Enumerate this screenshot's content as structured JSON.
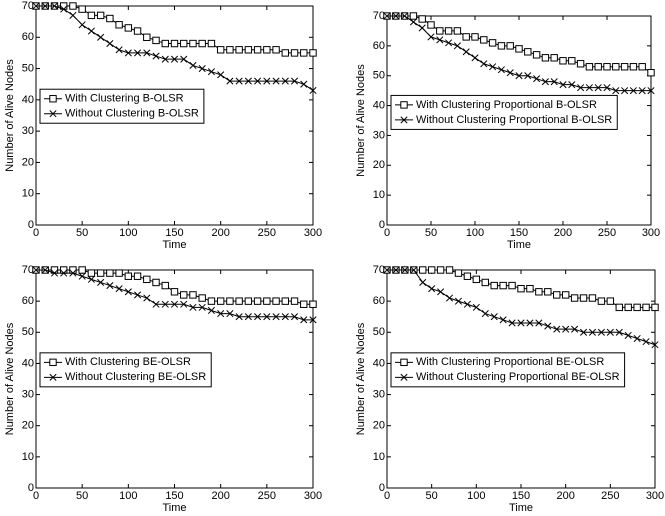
{
  "chart_data": [
    {
      "type": "line",
      "xlabel": "Time",
      "ylabel": "Number of Alive Nodes",
      "x": [
        0,
        10,
        20,
        30,
        40,
        50,
        60,
        70,
        80,
        90,
        100,
        110,
        120,
        130,
        140,
        150,
        160,
        170,
        180,
        190,
        200,
        210,
        220,
        230,
        240,
        250,
        260,
        270,
        280,
        290,
        300
      ],
      "series": [
        {
          "name": "With Clustering B-OLSR",
          "color": "#000000",
          "marker": "square",
          "values": [
            70,
            70,
            70,
            70,
            70,
            69,
            67,
            67,
            66,
            64,
            63,
            62,
            60,
            59,
            58,
            58,
            58,
            58,
            58,
            58,
            56,
            56,
            56,
            56,
            56,
            56,
            56,
            55,
            55,
            55,
            55
          ]
        },
        {
          "name": "Without Clustering B-OLSR",
          "color": "#000000",
          "marker": "x",
          "values": [
            70,
            70,
            70,
            69,
            67,
            64,
            62,
            60,
            58,
            56,
            55,
            55,
            55,
            54,
            53,
            53,
            53,
            51,
            50,
            49,
            48,
            46,
            46,
            46,
            46,
            46,
            46,
            46,
            46,
            45,
            43
          ]
        }
      ],
      "xlim": [
        0,
        300
      ],
      "xticks": [
        0,
        50,
        100,
        150,
        200,
        250,
        300
      ],
      "ylim": [
        0,
        70
      ],
      "yticks": [
        0,
        10,
        20,
        30,
        40,
        50,
        60,
        70
      ],
      "legend": "center left"
    },
    {
      "type": "line",
      "xlabel": "Time",
      "ylabel": "Number of Alive Nodes",
      "x": [
        0,
        10,
        20,
        30,
        40,
        50,
        60,
        70,
        80,
        90,
        100,
        110,
        120,
        130,
        140,
        150,
        160,
        170,
        180,
        190,
        200,
        210,
        220,
        230,
        240,
        250,
        260,
        270,
        280,
        290,
        300
      ],
      "series": [
        {
          "name": "With Clustering Proportional B-OLSR",
          "color": "#000000",
          "marker": "square",
          "values": [
            70,
            70,
            70,
            70,
            69,
            67,
            65,
            65,
            65,
            63,
            63,
            62,
            61,
            60,
            60,
            59,
            58,
            57,
            56,
            56,
            55,
            55,
            54,
            53,
            53,
            53,
            53,
            53,
            53,
            53,
            51
          ]
        },
        {
          "name": "Without Clustering Proportional B-OLSR",
          "color": "#000000",
          "marker": "x",
          "values": [
            70,
            70,
            70,
            68,
            66,
            63,
            62,
            61,
            60,
            58,
            56,
            54,
            53,
            52,
            51,
            50,
            50,
            49,
            48,
            48,
            47,
            47,
            46,
            46,
            46,
            46,
            45,
            45,
            45,
            45,
            45
          ]
        }
      ],
      "xlim": [
        0,
        300
      ],
      "xticks": [
        0,
        50,
        100,
        150,
        200,
        250,
        300
      ],
      "ylim": [
        0,
        70
      ],
      "yticks": [
        0,
        10,
        20,
        30,
        40,
        50,
        60,
        70
      ],
      "legend": "center left"
    },
    {
      "type": "line",
      "xlabel": "Time",
      "ylabel": "Number of Alive Nodes",
      "x": [
        0,
        10,
        20,
        30,
        40,
        50,
        60,
        70,
        80,
        90,
        100,
        110,
        120,
        130,
        140,
        150,
        160,
        170,
        180,
        190,
        200,
        210,
        220,
        230,
        240,
        250,
        260,
        270,
        280,
        290,
        300
      ],
      "series": [
        {
          "name": "With Clustering BE-OLSR",
          "color": "#000000",
          "marker": "square",
          "values": [
            70,
            70,
            70,
            70,
            70,
            70,
            69,
            69,
            69,
            69,
            68,
            68,
            67,
            66,
            65,
            63,
            62,
            62,
            61,
            60,
            60,
            60,
            60,
            60,
            60,
            60,
            60,
            60,
            60,
            59,
            59
          ]
        },
        {
          "name": "Without Clustering BE-OLSR",
          "color": "#000000",
          "marker": "x",
          "values": [
            70,
            70,
            69,
            69,
            69,
            68,
            67,
            66,
            65,
            64,
            63,
            62,
            61,
            59,
            59,
            59,
            59,
            58,
            58,
            57,
            56,
            56,
            55,
            55,
            55,
            55,
            55,
            55,
            55,
            54,
            54
          ]
        }
      ],
      "xlim": [
        0,
        300
      ],
      "xticks": [
        0,
        50,
        100,
        150,
        200,
        250,
        300
      ],
      "ylim": [
        0,
        70
      ],
      "yticks": [
        0,
        10,
        20,
        30,
        40,
        50,
        60,
        70
      ],
      "legend": "center left"
    },
    {
      "type": "line",
      "xlabel": "Time",
      "ylabel": "Number of Alive Nodes",
      "x": [
        0,
        10,
        20,
        30,
        40,
        50,
        60,
        70,
        80,
        90,
        100,
        110,
        120,
        130,
        140,
        150,
        160,
        170,
        180,
        190,
        200,
        210,
        220,
        230,
        240,
        250,
        260,
        270,
        280,
        290,
        300
      ],
      "series": [
        {
          "name": "With Clustering Proportional BE-OLSR",
          "color": "#000000",
          "marker": "square",
          "values": [
            70,
            70,
            70,
            70,
            70,
            70,
            70,
            70,
            69,
            68,
            67,
            66,
            65,
            65,
            65,
            64,
            64,
            63,
            63,
            62,
            62,
            61,
            61,
            61,
            60,
            60,
            58,
            58,
            58,
            58,
            58
          ]
        },
        {
          "name": "Without Clustering Proportional BE-OLSR",
          "color": "#000000",
          "marker": "x",
          "values": [
            70,
            70,
            70,
            70,
            66,
            64,
            63,
            61,
            60,
            59,
            58,
            56,
            55,
            54,
            53,
            53,
            53,
            53,
            52,
            51,
            51,
            51,
            50,
            50,
            50,
            50,
            50,
            49,
            48,
            47,
            46
          ]
        }
      ],
      "xlim": [
        0,
        300
      ],
      "xticks": [
        0,
        50,
        100,
        150,
        200,
        250,
        300
      ],
      "ylim": [
        0,
        70
      ],
      "yticks": [
        0,
        10,
        20,
        30,
        40,
        50,
        60,
        70
      ],
      "legend": "center left"
    }
  ]
}
